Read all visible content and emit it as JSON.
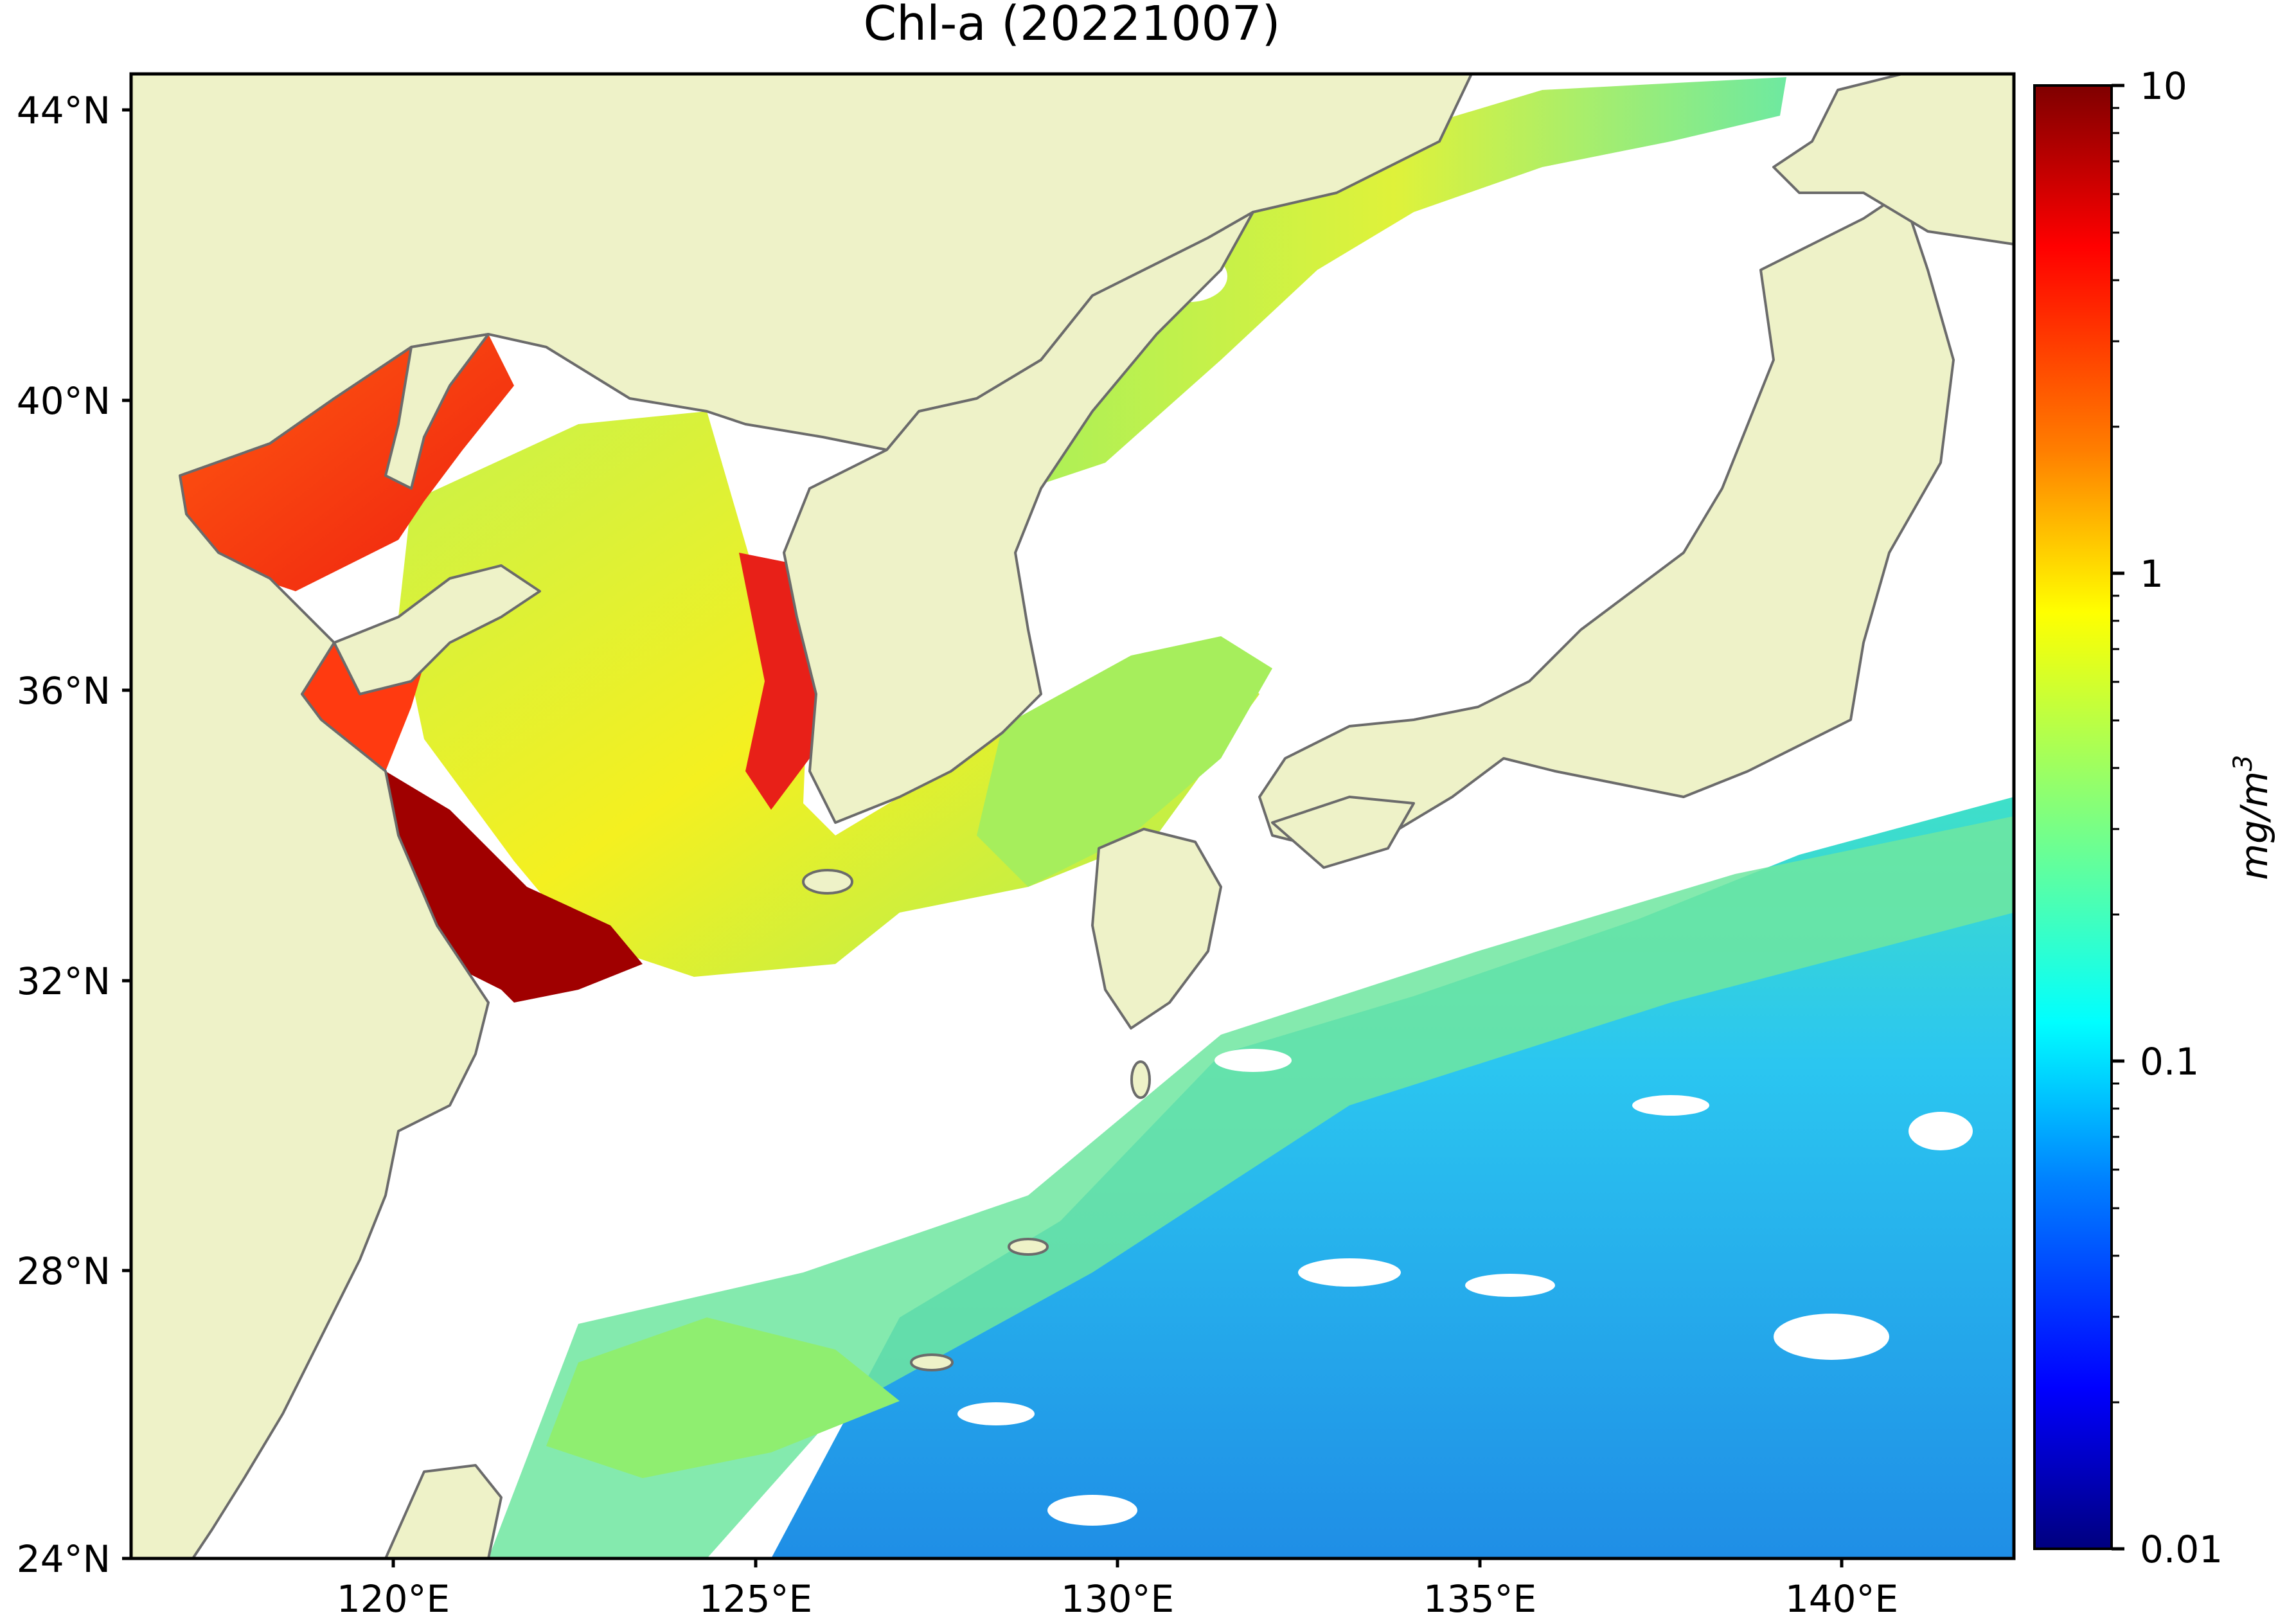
{
  "title": "Chl-a (20221007)",
  "lat_labels": [
    "44°N",
    "40°N",
    "36°N",
    "32°N",
    "28°N",
    "24°N"
  ],
  "lon_labels": [
    "120°E",
    "125°E",
    "130°E",
    "135°E",
    "140°E"
  ],
  "colorbar": {
    "unit_label": "mg/m",
    "unit_exponent": "3",
    "ticks": [
      "10",
      "1",
      "0.1",
      "0.01"
    ],
    "scale": "log",
    "range": [
      0.01,
      10
    ],
    "colormap": [
      "#00007f",
      "#0000ff",
      "#007fff",
      "#00ffff",
      "#7fff7f",
      "#ffff00",
      "#ff7f00",
      "#ff0000",
      "#7f0000"
    ]
  },
  "colors": {
    "land": "#eef2c8",
    "coastline": "#6b6b6b",
    "no_data": "#ffffff"
  }
}
